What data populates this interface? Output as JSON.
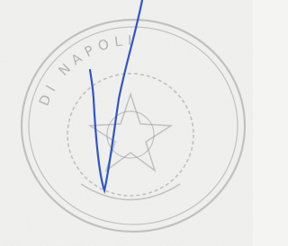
{
  "stamp": {
    "top_text": "DI NAPOLI"
  }
}
